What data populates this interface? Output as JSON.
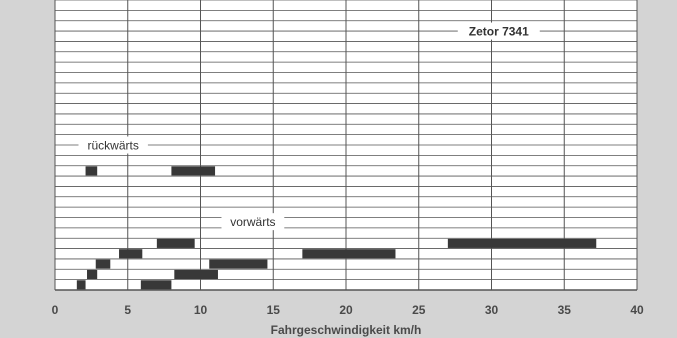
{
  "chart_data": {
    "type": "bar",
    "subtype": "horizontal-range",
    "title": "",
    "xlabel": "Fahrgeschwindigkeit km/h",
    "ylabel": "",
    "xlim": [
      0,
      40
    ],
    "xticks": [
      "0",
      "5",
      "10",
      "15",
      "20",
      "25",
      "30",
      "35",
      "40"
    ],
    "grid": true,
    "gear_rows": 28,
    "annotations": [
      {
        "text": "Zetor 7341",
        "bold": true,
        "x": 30.5,
        "row": 24.5
      },
      {
        "text": "rückwärts",
        "bold": false,
        "x": 4,
        "row": 13.5
      },
      {
        "text": "vorwärts",
        "bold": false,
        "x": 13.6,
        "row": 6.1
      }
    ],
    "series": [
      {
        "name": "vorwärts",
        "ranges": [
          {
            "row": 0,
            "start": 1.5,
            "end": 2.1
          },
          {
            "row": 0,
            "start": 5.9,
            "end": 8.0
          },
          {
            "row": 1,
            "start": 2.2,
            "end": 2.9
          },
          {
            "row": 1,
            "start": 8.2,
            "end": 11.2
          },
          {
            "row": 2,
            "start": 2.8,
            "end": 3.8
          },
          {
            "row": 2,
            "start": 10.6,
            "end": 14.6
          },
          {
            "row": 3,
            "start": 4.4,
            "end": 6.0
          },
          {
            "row": 3,
            "start": 17.0,
            "end": 23.4
          },
          {
            "row": 4,
            "start": 7.0,
            "end": 9.6
          },
          {
            "row": 4,
            "start": 27.0,
            "end": 37.2
          }
        ]
      },
      {
        "name": "rückwärts",
        "ranges": [
          {
            "row": 11,
            "start": 2.1,
            "end": 2.9
          },
          {
            "row": 11,
            "start": 8.0,
            "end": 11.0
          }
        ]
      }
    ],
    "colors": {
      "bar": "#383838",
      "grid": "#555555",
      "plot": "#ffffff",
      "background": "#d4d4d4"
    }
  }
}
